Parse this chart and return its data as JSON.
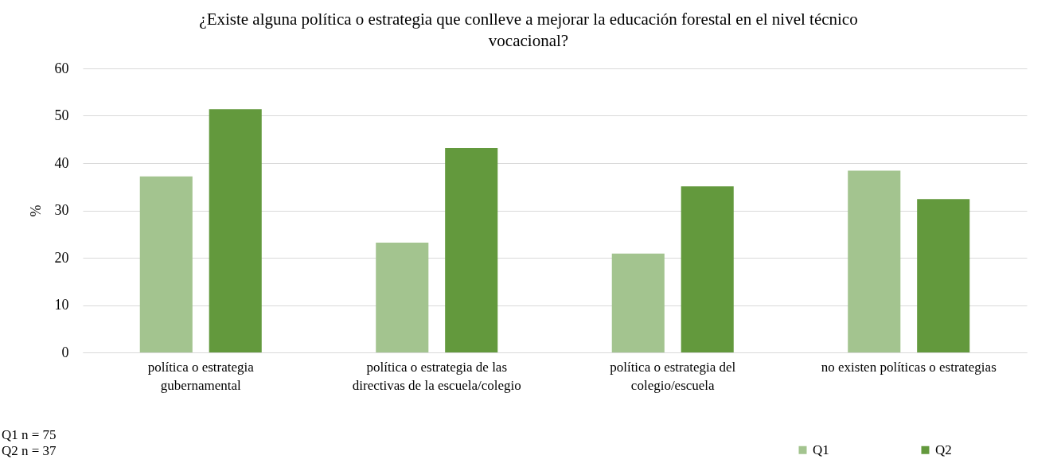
{
  "chart_data": {
    "type": "bar",
    "title": "¿Existe alguna política o estrategia que conlleve a mejorar la educación forestal en el nivel técnico vocacional?",
    "ylabel": "%",
    "categories": [
      "política o estrategia gubernamental",
      "política o estrategia de las directivas de la escuela/colegio",
      "política o estrategia del colegio/escuela",
      "no existen políticas o estrategias"
    ],
    "series": [
      {
        "name": "Q1",
        "color": "#a3c48f",
        "values": [
          37.2,
          23.2,
          20.9,
          38.4
        ]
      },
      {
        "name": "Q2",
        "color": "#63993d",
        "values": [
          51.4,
          43.2,
          35.1,
          32.4
        ]
      }
    ],
    "ylim": [
      0,
      60
    ],
    "yticks": [
      0,
      10,
      20,
      30,
      40,
      50,
      60
    ],
    "grid": "y",
    "legend": "bottom right",
    "annotations": [
      "Q1 n = 75",
      "Q2 n = 37"
    ]
  }
}
